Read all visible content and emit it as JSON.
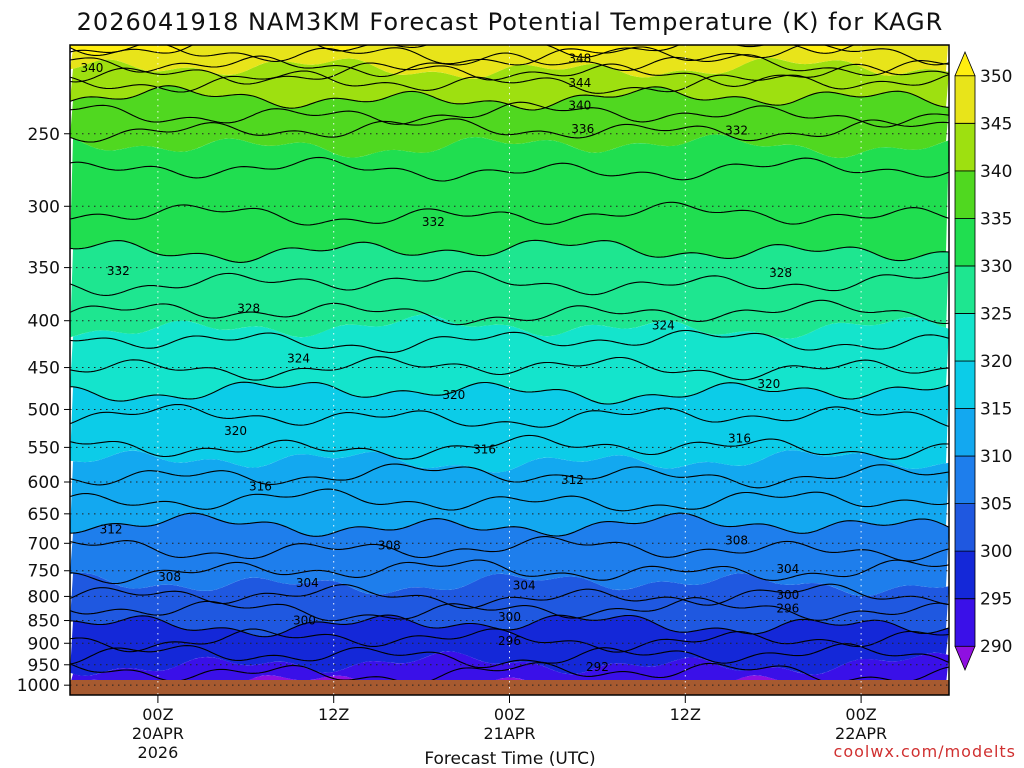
{
  "chart_data": {
    "type": "heatmap",
    "title": "2026041918 NAM3KM Forecast Potential Temperature (K) for KAGR",
    "xlabel": "Forecast Time (UTC)",
    "ylabel": "",
    "credit": "coolwx.com/modelts",
    "y_axis": {
      "ticks": [
        250,
        300,
        350,
        400,
        450,
        500,
        550,
        600,
        650,
        700,
        750,
        800,
        850,
        900,
        950,
        1000
      ],
      "labels": [
        "250",
        "300",
        "350",
        "400",
        "450",
        "500",
        "550",
        "600",
        "650",
        "700",
        "750",
        "800",
        "850",
        "900",
        "950",
        "1000"
      ],
      "range": [
        200,
        1025
      ],
      "scale": "log",
      "gridlines": "dotted"
    },
    "x_axis": {
      "ticks": [
        {
          "hour": 6,
          "lines": [
            "00Z",
            "20APR",
            "2026"
          ]
        },
        {
          "hour": 18,
          "lines": [
            "12Z"
          ]
        },
        {
          "hour": 30,
          "lines": [
            "00Z",
            "21APR"
          ]
        },
        {
          "hour": 42,
          "lines": [
            "12Z"
          ]
        },
        {
          "hour": 54,
          "lines": [
            "00Z",
            "22APR"
          ]
        }
      ],
      "range": [
        0,
        60
      ],
      "gridlines": "dotted"
    },
    "colorbar": {
      "levels": [
        290,
        295,
        300,
        305,
        310,
        315,
        320,
        325,
        330,
        335,
        340,
        345,
        350
      ],
      "labels": [
        "290",
        "295",
        "300",
        "305",
        "310",
        "315",
        "320",
        "325",
        "330",
        "335",
        "340",
        "345",
        "350"
      ],
      "colors": [
        "#8f10e0",
        "#3a10e8",
        "#1428d8",
        "#1f58e0",
        "#1e7eec",
        "#13a8f0",
        "#0ccce8",
        "#14e4cc",
        "#1ee690",
        "#20de50",
        "#50d820",
        "#9ee010",
        "#e8e41a",
        "#ffee10"
      ]
    },
    "isotherm_profile": [
      {
        "p": 1000,
        "theta": 292.5
      },
      {
        "p": 900,
        "theta": 297.5
      },
      {
        "p": 850,
        "theta": 300.5
      },
      {
        "p": 800,
        "theta": 304.0
      },
      {
        "p": 750,
        "theta": 306.0
      },
      {
        "p": 700,
        "theta": 308.5
      },
      {
        "p": 650,
        "theta": 311.0
      },
      {
        "p": 600,
        "theta": 313.5
      },
      {
        "p": 550,
        "theta": 316.0
      },
      {
        "p": 500,
        "theta": 318.5
      },
      {
        "p": 450,
        "theta": 322.0
      },
      {
        "p": 400,
        "theta": 325.5
      },
      {
        "p": 350,
        "theta": 329.0
      },
      {
        "p": 300,
        "theta": 332.5
      },
      {
        "p": 250,
        "theta": 335.5
      },
      {
        "p": 220,
        "theta": 342.0
      },
      {
        "p": 200,
        "theta": 350.0
      }
    ],
    "contour_labels": [
      {
        "text": "340",
        "hour": 1.5,
        "p": 212
      },
      {
        "text": "348",
        "hour": 34.8,
        "p": 207
      },
      {
        "text": "344",
        "hour": 34.8,
        "p": 220
      },
      {
        "text": "340",
        "hour": 34.8,
        "p": 233
      },
      {
        "text": "336",
        "hour": 35.0,
        "p": 247
      },
      {
        "text": "332",
        "hour": 45.5,
        "p": 248
      },
      {
        "text": "332",
        "hour": 24.8,
        "p": 312
      },
      {
        "text": "332",
        "hour": 3.3,
        "p": 353
      },
      {
        "text": "328",
        "hour": 48.5,
        "p": 355
      },
      {
        "text": "328",
        "hour": 12.2,
        "p": 388
      },
      {
        "text": "324",
        "hour": 40.5,
        "p": 405
      },
      {
        "text": "324",
        "hour": 15.6,
        "p": 440
      },
      {
        "text": "320",
        "hour": 26.2,
        "p": 482
      },
      {
        "text": "320",
        "hour": 47.7,
        "p": 469
      },
      {
        "text": "320",
        "hour": 11.3,
        "p": 528
      },
      {
        "text": "316",
        "hour": 45.7,
        "p": 538
      },
      {
        "text": "316",
        "hour": 28.3,
        "p": 553
      },
      {
        "text": "316",
        "hour": 13.0,
        "p": 607
      },
      {
        "text": "312",
        "hour": 34.3,
        "p": 597
      },
      {
        "text": "312",
        "hour": 2.8,
        "p": 676
      },
      {
        "text": "308",
        "hour": 45.5,
        "p": 695
      },
      {
        "text": "308",
        "hour": 21.8,
        "p": 704
      },
      {
        "text": "308",
        "hour": 6.8,
        "p": 762
      },
      {
        "text": "304",
        "hour": 49.0,
        "p": 747
      },
      {
        "text": "304",
        "hour": 16.2,
        "p": 773
      },
      {
        "text": "304",
        "hour": 31.0,
        "p": 778
      },
      {
        "text": "300",
        "hour": 49.0,
        "p": 797
      },
      {
        "text": "300",
        "hour": 16.0,
        "p": 850
      },
      {
        "text": "300",
        "hour": 30.0,
        "p": 842
      },
      {
        "text": "296",
        "hour": 49.0,
        "p": 825
      },
      {
        "text": "296",
        "hour": 30.0,
        "p": 895
      },
      {
        "text": "292",
        "hour": 36.0,
        "p": 955
      }
    ],
    "ground_color": "#a65a30"
  }
}
